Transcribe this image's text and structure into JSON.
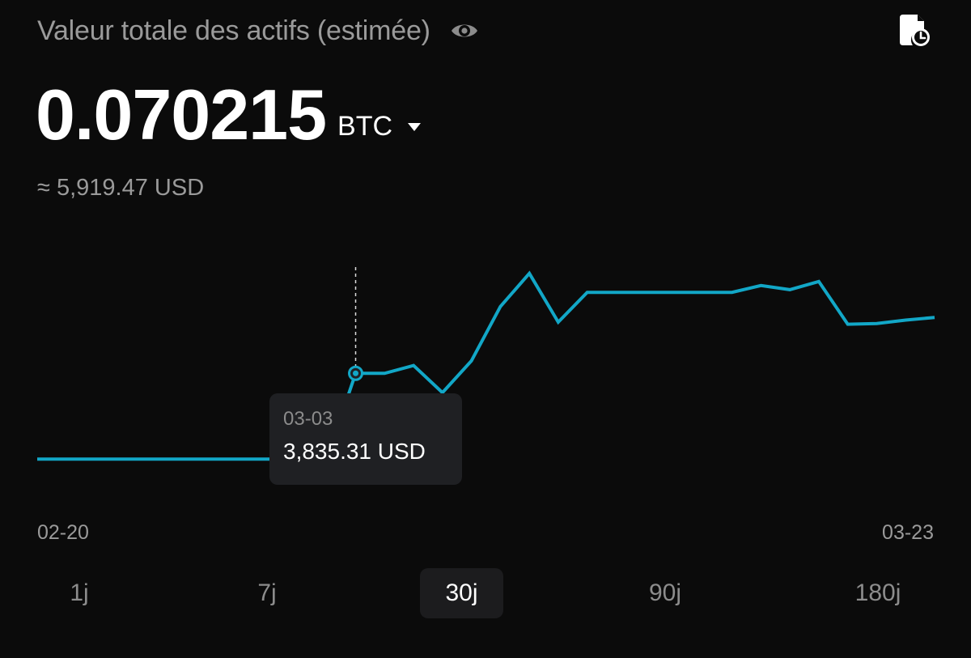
{
  "header": {
    "title": "Valeur totale des actifs (estimée)",
    "eye_icon": "eye-icon",
    "history_icon": "history-clock-icon"
  },
  "balance": {
    "amount": "0.070215",
    "currency": "BTC",
    "approx_value": "≈ 5,919.47 USD"
  },
  "tooltip": {
    "date": "03-03",
    "value": "3,835.31 USD"
  },
  "range_tabs": [
    {
      "label": "1j",
      "active": false
    },
    {
      "label": "7j",
      "active": false
    },
    {
      "label": "30j",
      "active": true
    },
    {
      "label": "90j",
      "active": false
    },
    {
      "label": "180j",
      "active": false
    }
  ],
  "colors": {
    "line": "#12a7c7",
    "background": "#0b0b0b",
    "muted_text": "#9a9a9a"
  },
  "chart_data": {
    "type": "line",
    "x": [
      "02-20",
      "02-21",
      "02-22",
      "02-23",
      "02-24",
      "02-25",
      "02-26",
      "02-27",
      "02-28",
      "03-01",
      "03-02",
      "03-03",
      "03-04",
      "03-05",
      "03-06",
      "03-07",
      "03-08",
      "03-09",
      "03-10",
      "03-11",
      "03-12",
      "03-13",
      "03-14",
      "03-15",
      "03-16",
      "03-17",
      "03-18",
      "03-19",
      "03-20",
      "03-21",
      "03-22",
      "03-23"
    ],
    "series": [
      {
        "values": [
          2570,
          2570,
          2570,
          2570,
          2570,
          2570,
          2570,
          2570,
          2570,
          2570,
          2570,
          3835,
          3835,
          3950,
          3550,
          4020,
          4820,
          5310,
          4590,
          5030,
          5030,
          5030,
          5030,
          5030,
          5030,
          5130,
          5070,
          5190,
          4560,
          4570,
          4620,
          4660
        ]
      }
    ],
    "highlight": {
      "x": "03-03",
      "value": 3835.31
    },
    "x_tick_labels": [
      "02-20",
      "03-23"
    ],
    "ylim": [
      1700,
      6000
    ],
    "grid": false
  }
}
